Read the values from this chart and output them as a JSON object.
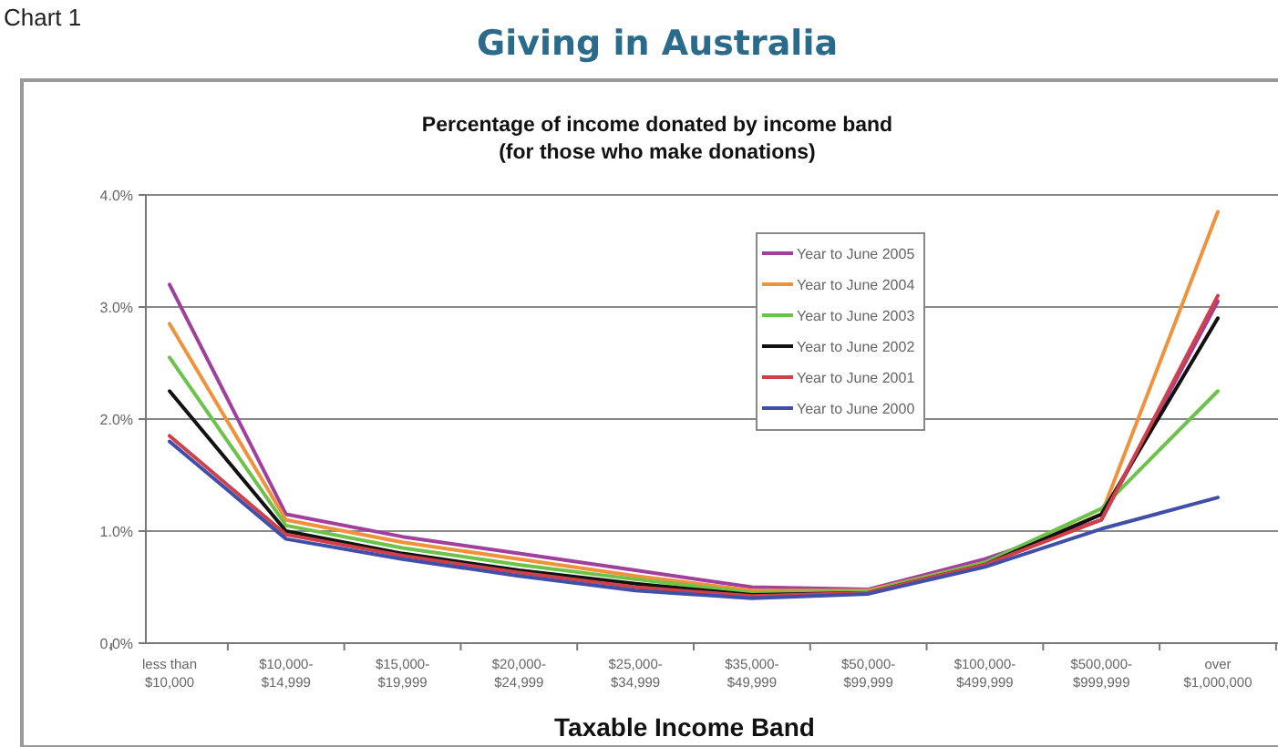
{
  "chart_data": {
    "type": "line",
    "title": "Giving in Australia",
    "subtitle": "Percentage of income donated by income band\n(for those who make donations)",
    "xlabel": "Taxable Income Band",
    "annotations": [
      "Chart 1"
    ],
    "categories": [
      "less than\n$10,000",
      "$10,000-\n$14,999",
      "$15,000-\n$19,999",
      "$20,000-\n$24,999",
      "$25,000-\n$34,999",
      "$35,000-\n$49,999",
      "$50,000-\n$99,999",
      "$100,000-\n$499,999",
      "$500,000-\n$999,999",
      "over\n$1,000,000"
    ],
    "ylim": [
      0,
      4
    ],
    "yticks": [
      {
        "value": 0,
        "label": "0.0%"
      },
      {
        "value": 1,
        "label": "1.0%"
      },
      {
        "value": 2,
        "label": "2.0%"
      },
      {
        "value": 3,
        "label": "3.0%"
      },
      {
        "value": 4,
        "label": "4.0%"
      }
    ],
    "grid": "y",
    "legend": "top right",
    "marker": "none",
    "line_style": "solid",
    "series": [
      {
        "name": "Year to June 2005",
        "color": "#a0409c",
        "values": [
          3.2,
          1.15,
          0.95,
          0.8,
          0.65,
          0.5,
          0.48,
          0.75,
          1.1,
          3.05
        ]
      },
      {
        "name": "Year to June 2004",
        "color": "#f0923c",
        "values": [
          2.85,
          1.1,
          0.9,
          0.75,
          0.6,
          0.47,
          0.47,
          0.72,
          1.15,
          3.85
        ]
      },
      {
        "name": "Year to June 2003",
        "color": "#6cc24a",
        "values": [
          2.55,
          1.05,
          0.85,
          0.7,
          0.57,
          0.45,
          0.46,
          0.72,
          1.2,
          2.25
        ]
      },
      {
        "name": "Year to June 2002",
        "color": "#111111",
        "values": [
          2.25,
          1.0,
          0.8,
          0.65,
          0.53,
          0.43,
          0.45,
          0.7,
          1.15,
          2.9
        ]
      },
      {
        "name": "Year to June 2001",
        "color": "#d0404a",
        "values": [
          1.85,
          0.97,
          0.78,
          0.63,
          0.5,
          0.42,
          0.45,
          0.7,
          1.1,
          3.1
        ]
      },
      {
        "name": "Year to June 2000",
        "color": "#4050a8",
        "values": [
          1.8,
          0.93,
          0.75,
          0.6,
          0.47,
          0.4,
          0.44,
          0.68,
          1.02,
          1.3
        ]
      }
    ]
  }
}
